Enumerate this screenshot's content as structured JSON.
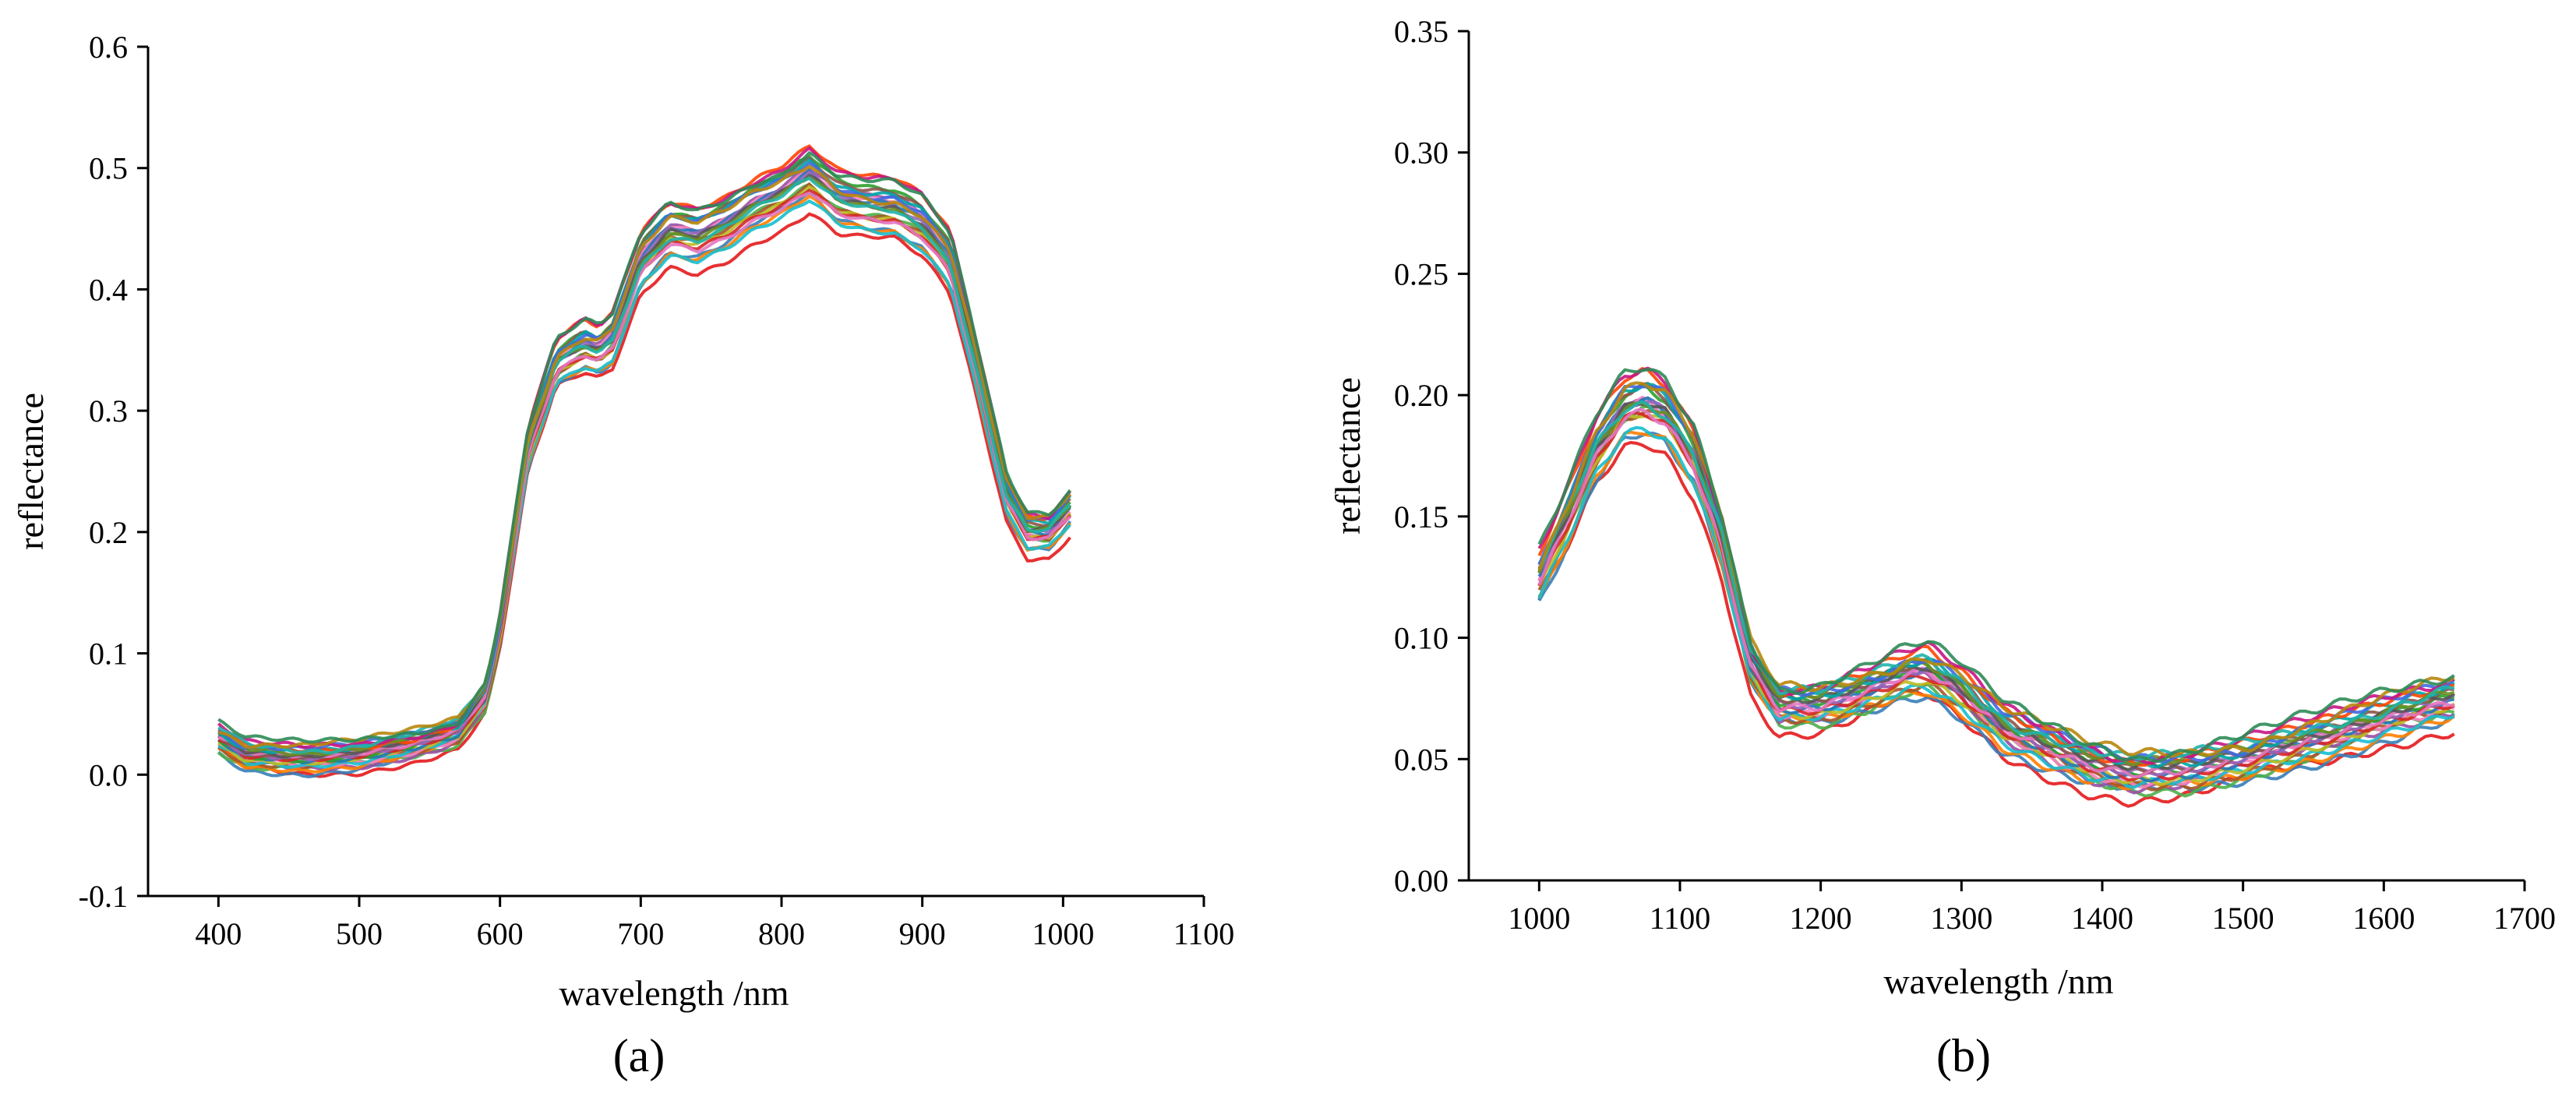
{
  "chart_data": [
    {
      "type": "line",
      "panel_label": "(a)",
      "xlabel": "wavelength /nm",
      "ylabel": "reflectance",
      "xlim": [
        350,
        1100
      ],
      "ylim": [
        -0.1,
        0.6
      ],
      "xticks": [
        400,
        500,
        600,
        700,
        800,
        900,
        1000,
        1100
      ],
      "xtick_labels": [
        "400",
        "500",
        "600",
        "700",
        "800",
        "900",
        "1000",
        "1100"
      ],
      "yticks": [
        -0.1,
        0.0,
        0.1,
        0.2,
        0.3,
        0.4,
        0.5,
        0.6
      ],
      "ytick_labels": [
        "-0.1",
        "0.0",
        "0.1",
        "0.2",
        "0.3",
        "0.4",
        "0.5",
        "0.6"
      ],
      "series_count": 24,
      "series_spread": 0.03,
      "x": [
        400,
        420,
        460,
        500,
        540,
        570,
        590,
        600,
        620,
        640,
        660,
        670,
        680,
        700,
        720,
        740,
        760,
        780,
        800,
        820,
        840,
        860,
        880,
        900,
        920,
        940,
        960,
        975,
        990,
        1005
      ],
      "mean_values": [
        0.03,
        0.016,
        0.013,
        0.016,
        0.025,
        0.035,
        0.065,
        0.12,
        0.27,
        0.34,
        0.355,
        0.35,
        0.36,
        0.425,
        0.45,
        0.445,
        0.455,
        0.47,
        0.48,
        0.495,
        0.475,
        0.47,
        0.468,
        0.455,
        0.425,
        0.33,
        0.23,
        0.2,
        0.2,
        0.22
      ]
    },
    {
      "type": "line",
      "panel_label": "(b)",
      "xlabel": "wavelength /nm",
      "ylabel": "reflectance",
      "xlim": [
        950,
        1700
      ],
      "ylim": [
        0.0,
        0.35
      ],
      "xticks": [
        1000,
        1100,
        1200,
        1300,
        1400,
        1500,
        1600,
        1700
      ],
      "xtick_labels": [
        "1000",
        "1100",
        "1200",
        "1300",
        "1400",
        "1500",
        "1600",
        "1700"
      ],
      "yticks": [
        0.0,
        0.05,
        0.1,
        0.15,
        0.2,
        0.25,
        0.3,
        0.35
      ],
      "ytick_labels": [
        "0.00",
        "0.05",
        "0.10",
        "0.15",
        "0.20",
        "0.25",
        "0.30",
        "0.35"
      ],
      "series_count": 24,
      "series_spread": 0.022,
      "x": [
        1000,
        1020,
        1040,
        1060,
        1075,
        1090,
        1110,
        1130,
        1150,
        1170,
        1200,
        1230,
        1260,
        1275,
        1300,
        1330,
        1360,
        1390,
        1420,
        1460,
        1500,
        1550,
        1600,
        1650
      ],
      "mean_values": [
        0.125,
        0.15,
        0.178,
        0.195,
        0.198,
        0.193,
        0.175,
        0.14,
        0.09,
        0.072,
        0.072,
        0.078,
        0.085,
        0.087,
        0.078,
        0.063,
        0.055,
        0.048,
        0.044,
        0.045,
        0.05,
        0.058,
        0.067,
        0.075
      ]
    }
  ]
}
